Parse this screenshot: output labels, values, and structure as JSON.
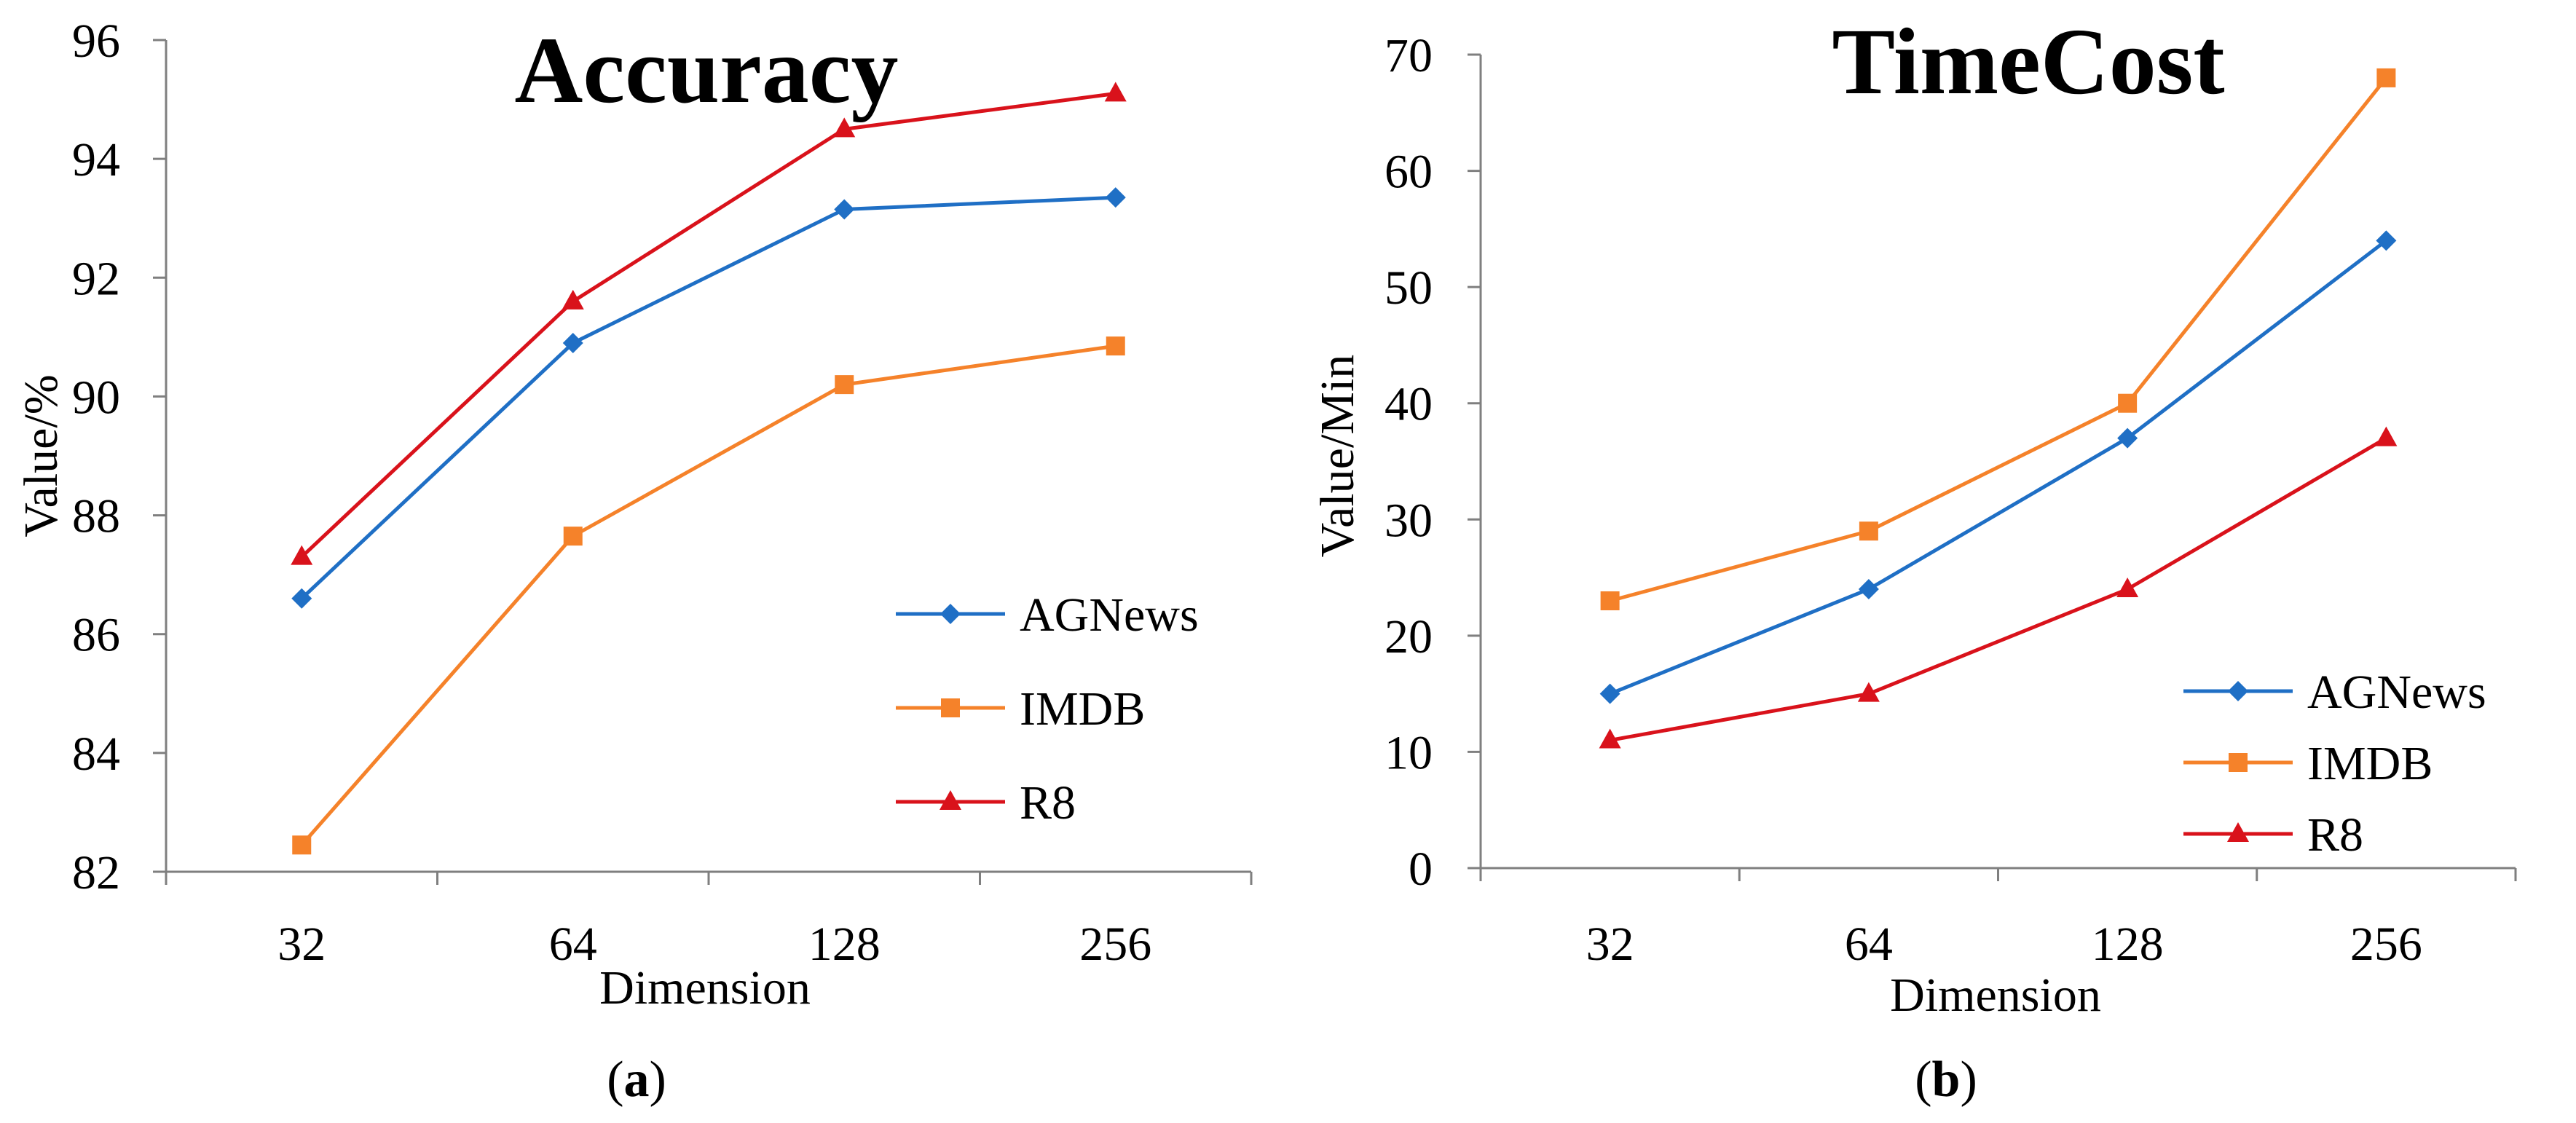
{
  "colors": {
    "AGNews": "#1f6fc5",
    "IMDB": "#f5822a",
    "R8": "#d9121b",
    "axis": "#7f7f7f"
  },
  "chart_data": [
    {
      "type": "line",
      "panel_label": "a",
      "title": "Accuracy",
      "xlabel": "Dimension",
      "ylabel": "Value/%",
      "categories": [
        "32",
        "64",
        "128",
        "256"
      ],
      "ylim": [
        82,
        96
      ],
      "yticks": [
        82,
        84,
        86,
        88,
        90,
        92,
        94,
        96
      ],
      "legend_position": "right",
      "series": [
        {
          "name": "AGNews",
          "marker": "diamond",
          "values": [
            86.6,
            90.9,
            93.15,
            93.35
          ]
        },
        {
          "name": "IMDB",
          "marker": "square",
          "values": [
            82.45,
            87.65,
            90.2,
            90.85
          ]
        },
        {
          "name": "R8",
          "marker": "triangle",
          "values": [
            87.3,
            91.6,
            94.5,
            95.1
          ]
        }
      ]
    },
    {
      "type": "line",
      "panel_label": "b",
      "title": "TimeCost",
      "xlabel": "Dimension",
      "ylabel": "Value/Min",
      "categories": [
        "32",
        "64",
        "128",
        "256"
      ],
      "ylim": [
        0,
        70
      ],
      "yticks": [
        0,
        10,
        20,
        30,
        40,
        50,
        60,
        70
      ],
      "legend_position": "bottom-right",
      "series": [
        {
          "name": "AGNews",
          "marker": "diamond",
          "values": [
            15,
            24,
            37,
            54
          ]
        },
        {
          "name": "IMDB",
          "marker": "square",
          "values": [
            23,
            29,
            40,
            68
          ]
        },
        {
          "name": "R8",
          "marker": "triangle",
          "values": [
            11,
            15,
            24,
            37
          ]
        }
      ]
    }
  ]
}
